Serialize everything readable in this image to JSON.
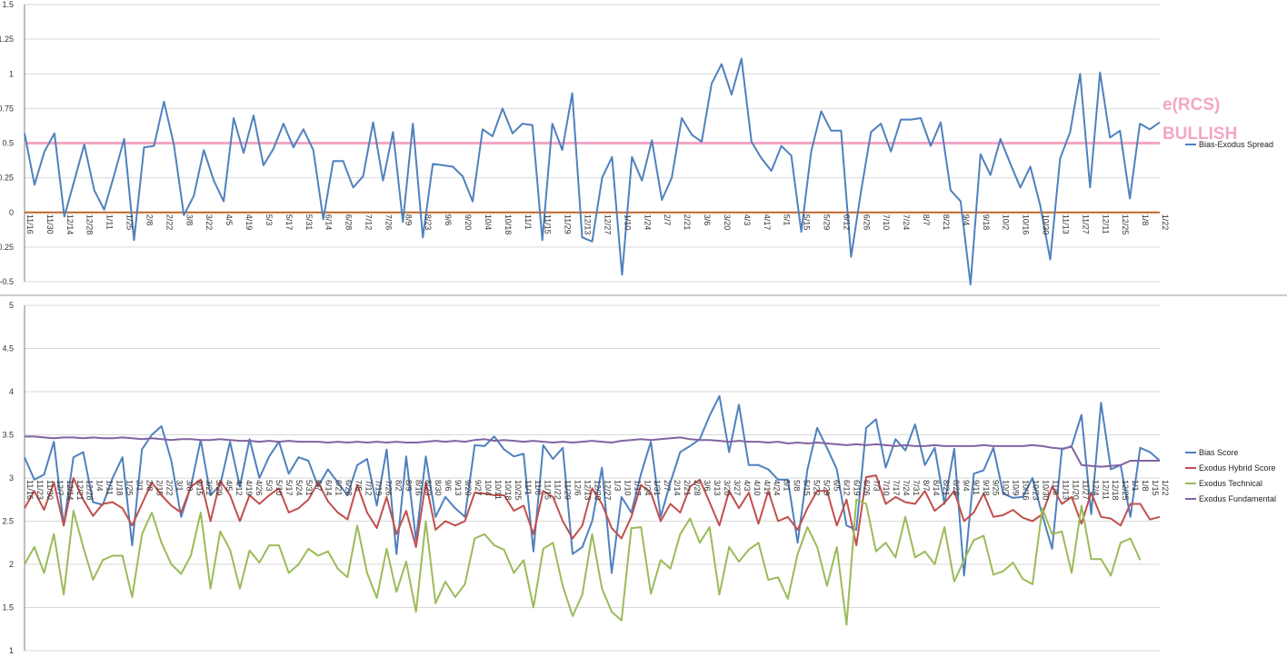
{
  "chart_data": [
    {
      "type": "line",
      "ylim": [
        -0.5,
        1.5
      ],
      "yticks": [
        "-0.5",
        "-0.25",
        "0",
        "0.25",
        "0.5",
        "0.75",
        "1",
        "1.25",
        "1.5"
      ],
      "grid": true,
      "legend_position": "right",
      "x_tick_labels": [
        "11/16",
        "11/30",
        "12/14",
        "12/28",
        "1/11",
        "1/25",
        "2/8",
        "2/22",
        "3/8",
        "3/22",
        "4/5",
        "4/19",
        "5/3",
        "5/17",
        "5/31",
        "6/14",
        "6/28",
        "7/12",
        "7/26",
        "8/9",
        "8/23",
        "9/6",
        "9/20",
        "10/4",
        "10/18",
        "11/1",
        "11/15",
        "11/29",
        "12/13",
        "12/27",
        "1/10",
        "1/24",
        "2/7",
        "2/21",
        "3/6",
        "3/20",
        "4/3",
        "4/17",
        "5/1",
        "5/15",
        "5/29",
        "6/12",
        "6/26",
        "7/10",
        "7/24",
        "8/7",
        "8/21",
        "9/4",
        "9/18",
        "10/2",
        "10/16",
        "10/30",
        "11/13",
        "11/27",
        "12/11",
        "12/25",
        "1/8",
        "1/22"
      ],
      "series": [
        {
          "name": "Bias-Exodus Spread",
          "color": "#4f81bd",
          "values": [
            0.57,
            0.2,
            0.44,
            0.57,
            -0.03,
            0.23,
            0.49,
            0.16,
            0.02,
            0.27,
            0.53,
            -0.2,
            0.47,
            0.48,
            0.8,
            0.49,
            -0.02,
            0.12,
            0.45,
            0.23,
            0.08,
            0.68,
            0.43,
            0.7,
            0.34,
            0.46,
            0.64,
            0.47,
            0.6,
            0.45,
            -0.05,
            0.37,
            0.37,
            0.18,
            0.26,
            0.65,
            0.23,
            0.58,
            -0.07,
            0.64,
            -0.18,
            0.35,
            0.34,
            0.33,
            0.26,
            0.08,
            0.6,
            0.55,
            0.75,
            0.57,
            0.64,
            0.63,
            -0.2,
            0.64,
            0.45,
            0.86,
            -0.18,
            -0.21,
            0.25,
            0.4,
            -0.45,
            0.4,
            0.23,
            0.52,
            0.09,
            0.25,
            0.68,
            0.56,
            0.51,
            0.93,
            1.07,
            0.85,
            1.11,
            0.51,
            0.39,
            0.3,
            0.48,
            0.41,
            -0.14,
            0.44,
            0.73,
            0.59,
            0.59,
            -0.32,
            0.15,
            0.58,
            0.64,
            0.44,
            0.67,
            0.67,
            0.68,
            0.48,
            0.65,
            0.16,
            0.08,
            -0.52,
            0.42,
            0.27,
            0.53,
            0.35,
            0.18,
            0.33,
            0.05,
            -0.34,
            0.39,
            0.58,
            1.0,
            0.18,
            1.01,
            0.54,
            0.59,
            0.1,
            0.64,
            0.6,
            0.65
          ]
        }
      ],
      "reference_lines": [
        {
          "name": "bullish-threshold",
          "value": 0.5,
          "color": "#f4a6c6"
        },
        {
          "name": "zero-line",
          "value": 0,
          "color": "#c0662a"
        }
      ],
      "annotations": [
        "e(RCS)",
        "BULLISH"
      ]
    },
    {
      "type": "line",
      "ylim": [
        1,
        5
      ],
      "yticks": [
        "1",
        "1.5",
        "2",
        "2.5",
        "3",
        "3.5",
        "4",
        "4.5",
        "5"
      ],
      "grid": true,
      "legend_position": "right",
      "x_tick_labels": [
        "11/16",
        "11/23",
        "11/30",
        "12/7",
        "12/14",
        "12/21",
        "12/28",
        "1/4",
        "1/11",
        "1/18",
        "1/25",
        "2/1",
        "2/8",
        "2/15",
        "2/22",
        "3/1",
        "3/8",
        "3/15",
        "3/22",
        "3/29",
        "4/5",
        "4/12",
        "4/19",
        "4/26",
        "5/3",
        "5/10",
        "5/17",
        "5/24",
        "5/31",
        "6/7",
        "6/14",
        "6/21",
        "6/28",
        "7/5",
        "7/12",
        "7/19",
        "7/26",
        "8/2",
        "8/9",
        "8/16",
        "8/23",
        "8/30",
        "9/6",
        "9/13",
        "9/20",
        "9/27",
        "10/4",
        "10/11",
        "10/18",
        "10/25",
        "11/1",
        "11/8",
        "11/15",
        "11/22",
        "11/29",
        "12/6",
        "12/13",
        "12/20",
        "12/27",
        "1/3",
        "1/10",
        "1/17",
        "1/24",
        "1/31",
        "2/7",
        "2/14",
        "2/21",
        "2/28",
        "3/6",
        "3/13",
        "3/20",
        "3/27",
        "4/3",
        "4/10",
        "4/17",
        "4/24",
        "5/1",
        "5/8",
        "5/15",
        "5/22",
        "5/29",
        "6/5",
        "6/12",
        "6/19",
        "6/26",
        "7/3",
        "7/10",
        "7/17",
        "7/24",
        "7/31",
        "8/7",
        "8/14",
        "8/21",
        "8/28",
        "9/4",
        "9/11",
        "9/18",
        "9/25",
        "10/2",
        "10/9",
        "10/16",
        "10/23",
        "10/30",
        "11/6",
        "11/13",
        "11/20",
        "11/27",
        "12/4",
        "12/11",
        "12/18",
        "12/25",
        "1/1",
        "1/8",
        "1/15",
        "1/22"
      ],
      "series": [
        {
          "name": "Bias Score",
          "color": "#4f81bd",
          "values": [
            3.24,
            2.98,
            3.04,
            3.42,
            2.45,
            3.24,
            3.3,
            2.72,
            2.69,
            3.0,
            3.24,
            2.22,
            3.33,
            3.5,
            3.6,
            3.2,
            2.55,
            2.9,
            3.44,
            2.8,
            2.92,
            3.42,
            2.9,
            3.45,
            3.0,
            3.25,
            3.42,
            3.05,
            3.24,
            3.2,
            2.9,
            3.1,
            2.95,
            2.8,
            3.15,
            3.22,
            2.68,
            3.33,
            2.12,
            3.25,
            2.28,
            3.25,
            2.55,
            2.78,
            2.65,
            2.55,
            3.38,
            3.37,
            3.48,
            3.33,
            3.25,
            3.28,
            2.15,
            3.38,
            3.22,
            3.35,
            2.12,
            2.2,
            2.5,
            3.12,
            1.9,
            2.78,
            2.6,
            3.05,
            3.42,
            2.55,
            2.95,
            3.3,
            3.37,
            3.45,
            3.72,
            3.95,
            3.3,
            3.85,
            3.15,
            3.15,
            3.1,
            2.98,
            2.98,
            2.25,
            3.1,
            3.58,
            3.35,
            3.1,
            2.45,
            2.4,
            3.58,
            3.68,
            3.12,
            3.45,
            3.32,
            3.62,
            3.15,
            3.35,
            2.7,
            3.34,
            1.87,
            3.05,
            3.09,
            3.35,
            2.82,
            2.77,
            2.78,
            3.0,
            2.57,
            2.18,
            3.33,
            3.37,
            3.73,
            2.58,
            3.87,
            3.1,
            3.15,
            2.55,
            3.35,
            3.3,
            3.2
          ]
        },
        {
          "name": "Exodus Hybrid Score",
          "color": "#c0504d",
          "values": [
            2.65,
            2.85,
            2.63,
            2.95,
            2.45,
            3.0,
            2.75,
            2.56,
            2.7,
            2.72,
            2.65,
            2.45,
            2.7,
            2.95,
            2.8,
            2.68,
            2.6,
            2.9,
            2.98,
            2.5,
            2.97,
            2.8,
            2.5,
            2.8,
            2.7,
            2.8,
            2.88,
            2.6,
            2.65,
            2.75,
            2.95,
            2.73,
            2.6,
            2.52,
            2.92,
            2.6,
            2.42,
            2.78,
            2.35,
            2.62,
            2.2,
            2.95,
            2.4,
            2.5,
            2.45,
            2.5,
            2.83,
            2.82,
            2.8,
            2.8,
            2.62,
            2.68,
            2.35,
            2.85,
            2.78,
            2.5,
            2.3,
            2.45,
            2.88,
            2.7,
            2.42,
            2.3,
            2.55,
            2.92,
            2.83,
            2.5,
            2.7,
            2.6,
            2.9,
            2.98,
            2.72,
            2.45,
            2.85,
            2.65,
            2.83,
            2.47,
            2.85,
            2.5,
            2.55,
            2.4,
            2.65,
            2.85,
            2.85,
            2.45,
            2.75,
            2.22,
            3.01,
            3.03,
            2.7,
            2.78,
            2.72,
            2.7,
            2.85,
            2.62,
            2.71,
            2.85,
            2.5,
            2.6,
            2.82,
            2.55,
            2.57,
            2.63,
            2.54,
            2.5,
            2.58,
            2.9,
            2.7,
            2.78,
            2.47,
            2.83,
            2.55,
            2.53,
            2.45,
            2.7,
            2.7,
            2.52,
            2.55
          ]
        },
        {
          "name": "Exodus Technical",
          "color": "#9bbb59",
          "values": [
            2.0,
            2.2,
            1.9,
            2.35,
            1.65,
            2.62,
            2.2,
            1.82,
            2.05,
            2.1,
            2.1,
            1.62,
            2.35,
            2.6,
            2.25,
            2.0,
            1.89,
            2.1,
            2.6,
            1.72,
            2.38,
            2.17,
            1.72,
            2.16,
            2.02,
            2.22,
            2.22,
            1.9,
            2.0,
            2.18,
            2.1,
            2.15,
            1.95,
            1.85,
            2.45,
            1.9,
            1.61,
            2.18,
            1.68,
            2.03,
            1.45,
            2.5,
            1.55,
            1.8,
            1.62,
            1.77,
            2.3,
            2.35,
            2.22,
            2.17,
            1.9,
            2.05,
            1.5,
            2.18,
            2.25,
            1.75,
            1.4,
            1.65,
            2.35,
            1.72,
            1.45,
            1.35,
            2.42,
            2.43,
            1.66,
            2.05,
            1.95,
            2.35,
            2.53,
            2.25,
            2.43,
            1.65,
            2.2,
            2.03,
            2.17,
            2.25,
            1.82,
            1.85,
            1.6,
            2.12,
            2.43,
            2.2,
            1.75,
            2.2,
            1.3,
            2.75,
            2.7,
            2.15,
            2.25,
            2.08,
            2.55,
            2.08,
            2.15,
            2.0,
            2.43,
            1.8,
            2.05,
            2.28,
            2.33,
            1.88,
            1.92,
            2.02,
            1.83,
            1.77,
            2.65,
            2.35,
            2.38,
            1.9,
            2.68,
            2.06,
            2.06,
            1.87,
            2.25,
            2.3,
            2.05
          ]
        },
        {
          "name": "Exodus Fundamental",
          "color": "#8064a2",
          "values": [
            3.48,
            3.48,
            3.47,
            3.46,
            3.47,
            3.47,
            3.46,
            3.47,
            3.46,
            3.46,
            3.47,
            3.46,
            3.45,
            3.46,
            3.45,
            3.44,
            3.45,
            3.45,
            3.44,
            3.44,
            3.45,
            3.44,
            3.43,
            3.43,
            3.42,
            3.43,
            3.42,
            3.43,
            3.42,
            3.42,
            3.42,
            3.41,
            3.42,
            3.41,
            3.42,
            3.41,
            3.42,
            3.41,
            3.42,
            3.41,
            3.41,
            3.42,
            3.43,
            3.42,
            3.43,
            3.42,
            3.44,
            3.45,
            3.43,
            3.44,
            3.43,
            3.42,
            3.43,
            3.42,
            3.41,
            3.42,
            3.41,
            3.42,
            3.43,
            3.42,
            3.41,
            3.43,
            3.44,
            3.45,
            3.44,
            3.45,
            3.46,
            3.47,
            3.45,
            3.44,
            3.44,
            3.43,
            3.42,
            3.43,
            3.42,
            3.42,
            3.41,
            3.42,
            3.4,
            3.41,
            3.4,
            3.41,
            3.4,
            3.39,
            3.38,
            3.39,
            3.38,
            3.39,
            3.38,
            3.37,
            3.38,
            3.37,
            3.37,
            3.38,
            3.37,
            3.37,
            3.37,
            3.37,
            3.38,
            3.37,
            3.37,
            3.37,
            3.37,
            3.38,
            3.37,
            3.35,
            3.34,
            3.36,
            3.15,
            3.14,
            3.13,
            3.14,
            3.15,
            3.2,
            3.2,
            3.2,
            3.2
          ]
        }
      ]
    }
  ]
}
